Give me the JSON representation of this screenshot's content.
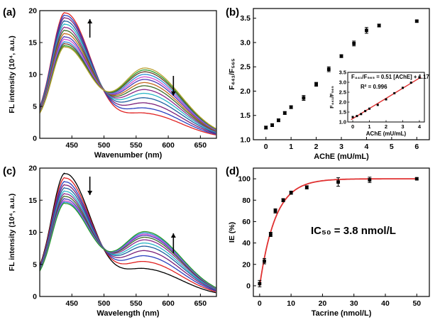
{
  "chart_data": [
    {
      "panel": "(a)",
      "type": "line",
      "xlabel": "Wavenumber (nm)",
      "ylabel": "FL intensity (10⁴, a.u.)",
      "xlim": [
        400,
        675
      ],
      "ylim": [
        0,
        20
      ],
      "xticks": [
        "450",
        "500",
        "550",
        "600",
        "650"
      ],
      "yticks": [
        "0",
        "5",
        "10",
        "15",
        "20"
      ],
      "colors": [
        "#e02020",
        "#2a3fbf",
        "#7a1f7a",
        "#1e5fa0",
        "#2bb6c8",
        "#8b2a8b",
        "#3d6b2a",
        "#c46a20",
        "#4b3ab8",
        "#d04fd0",
        "#2f8fd8",
        "#6a3c2a",
        "#2a9a2a",
        "#b8a030"
      ],
      "peak1_values": [
        19.6,
        19.2,
        18.8,
        18.3,
        17.8,
        17.3,
        16.8,
        16.3,
        15.8,
        15.4,
        15.0,
        14.7,
        14.4,
        14.2
      ],
      "peak2_values": [
        3.8,
        4.6,
        5.4,
        6.2,
        6.9,
        7.5,
        8.1,
        8.6,
        9.1,
        9.5,
        9.9,
        10.3,
        10.6,
        10.9
      ],
      "x1": 440,
      "x2": 565,
      "isosbestic": [
        517,
        8.6
      ],
      "arrows": [
        {
          "x": 478,
          "dir": "up"
        },
        {
          "x": 608,
          "dir": "down"
        }
      ]
    },
    {
      "panel": "(b)",
      "type": "scatter",
      "xlabel": "AChE (mU/mL)",
      "ylabel": "F₄₄₁/F₅₆₅",
      "xlim": [
        -0.5,
        6.5
      ],
      "ylim": [
        1.0,
        3.7
      ],
      "xticks": [
        "0",
        "1",
        "2",
        "3",
        "4",
        "5",
        "6"
      ],
      "yticks": [
        "1.0",
        "1.5",
        "2.0",
        "2.5",
        "3.0",
        "3.5"
      ],
      "x": [
        0,
        0.25,
        0.5,
        0.75,
        1.0,
        1.5,
        2.0,
        2.5,
        3.0,
        3.5,
        4.0,
        4.5,
        6.0
      ],
      "y": [
        1.25,
        1.3,
        1.4,
        1.55,
        1.67,
        1.86,
        2.14,
        2.45,
        2.72,
        2.98,
        3.25,
        3.35,
        3.44
      ],
      "errors": [
        0.03,
        0.03,
        0.03,
        0.03,
        0.03,
        0.05,
        0.04,
        0.05,
        0.03,
        0.05,
        0.06,
        0.03,
        0.02
      ],
      "inset": {
        "xlabel": "AChE (mU/mL)",
        "ylabel": "F₄₄₁/F₅₆₅",
        "xlim": [
          -0.3,
          4.3
        ],
        "ylim": [
          1.0,
          3.5
        ],
        "xticks": [
          "0",
          "1",
          "2",
          "3",
          "4"
        ],
        "yticks": [
          "1.0",
          "1.5",
          "2.0",
          "2.5",
          "3.0",
          "3.5"
        ],
        "equation": "F₄₄₁/F₅₆₅ = 0.51 [AChE] + 1.17",
        "r2": "R² = 0.996",
        "x": [
          0,
          0.25,
          0.5,
          0.75,
          1.0,
          1.5,
          2.0,
          2.5,
          3.0,
          3.5,
          4.0
        ],
        "y": [
          1.25,
          1.3,
          1.4,
          1.55,
          1.67,
          1.86,
          2.14,
          2.45,
          2.72,
          2.98,
          3.25
        ],
        "fit": {
          "slope": 0.51,
          "intercept": 1.17
        }
      }
    },
    {
      "panel": "(c)",
      "type": "line",
      "xlabel": "Wavelength (nm)",
      "ylabel": "FL intensity (10⁴, a.u.)",
      "xlim": [
        400,
        675
      ],
      "ylim": [
        0,
        20
      ],
      "xticks": [
        "450",
        "500",
        "550",
        "600",
        "650"
      ],
      "yticks": [
        "0",
        "5",
        "10",
        "15",
        "20"
      ],
      "colors": [
        "#000000",
        "#e02020",
        "#2a3fbf",
        "#7a1f7a",
        "#1e5fa0",
        "#2bb6c8",
        "#8b2a8b",
        "#3d6b2a",
        "#4b3ab8",
        "#d04fd0",
        "#2f8fd8",
        "#2a9a2a"
      ],
      "peak1_values": [
        19.1,
        18.4,
        17.8,
        17.3,
        16.8,
        16.3,
        15.9,
        15.5,
        15.1,
        14.8,
        14.6,
        14.4
      ],
      "peak2_values": [
        4.2,
        5.3,
        6.2,
        7.0,
        7.7,
        8.2,
        8.7,
        9.1,
        9.4,
        9.6,
        9.8,
        10.0
      ],
      "x1": 440,
      "x2": 565,
      "isosbestic": [
        518,
        8.6
      ],
      "arrows": [
        {
          "x": 478,
          "dir": "down"
        },
        {
          "x": 608,
          "dir": "up"
        }
      ]
    },
    {
      "panel": "(d)",
      "type": "scatter",
      "xlabel": "Tacrine (nmol/L)",
      "ylabel": "IE (%)",
      "xlim": [
        -2,
        54
      ],
      "ylim": [
        -10,
        110
      ],
      "xticks": [
        "0",
        "10",
        "20",
        "30",
        "40",
        "50"
      ],
      "yticks": [
        "0",
        "20",
        "40",
        "60",
        "80",
        "100"
      ],
      "x": [
        0,
        1.5,
        3.5,
        5,
        7.5,
        10,
        15,
        25,
        35,
        50
      ],
      "y": [
        2,
        23,
        48,
        70,
        80,
        87,
        92,
        97,
        99,
        100
      ],
      "errors": [
        3,
        2.5,
        2,
        2,
        1.5,
        1.5,
        1.5,
        4,
        2.5,
        1
      ],
      "fit_k": 0.2,
      "annotation": "IC₅₀ = 3.8 nmol/L"
    }
  ]
}
